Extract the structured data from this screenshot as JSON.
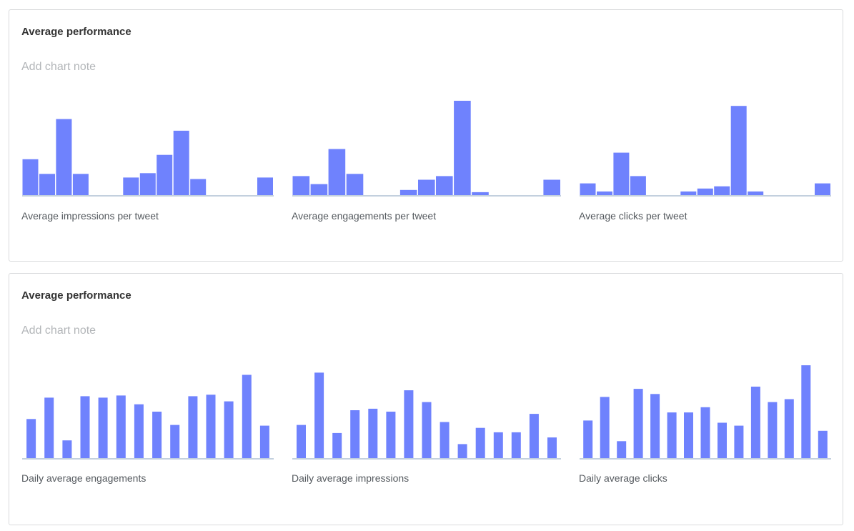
{
  "colors": {
    "bar": "#6f82fd",
    "baseline": "#c3d0de",
    "note": "#b3b6b9"
  },
  "cards": [
    {
      "title": "Average performance",
      "note_placeholder": "Add chart note"
    },
    {
      "title": "Average performance",
      "note_placeholder": "Add chart note"
    }
  ],
  "chart_data": [
    {
      "type": "bar",
      "title": "Average impressions per tweet",
      "bar_mode": "histogram",
      "values": [
        50,
        30,
        105,
        30,
        0,
        0,
        25,
        31,
        56,
        89,
        23,
        0,
        0,
        0,
        25
      ],
      "ylim": [
        0,
        130
      ]
    },
    {
      "type": "bar",
      "title": "Average engagements per tweet",
      "bar_mode": "histogram",
      "values": [
        27,
        16,
        64,
        30,
        0,
        0,
        8,
        22,
        27,
        130,
        5,
        0,
        0,
        0,
        22
      ],
      "ylim": [
        0,
        130
      ]
    },
    {
      "type": "bar",
      "title": "Average clicks per tweet",
      "bar_mode": "histogram",
      "values": [
        17,
        6,
        59,
        27,
        0,
        0,
        6,
        10,
        13,
        123,
        6,
        0,
        0,
        0,
        17
      ],
      "ylim": [
        0,
        130
      ]
    },
    {
      "type": "bar",
      "title": "Daily average engagements",
      "bar_mode": "column",
      "values": [
        54,
        83,
        25,
        85,
        83,
        86,
        74,
        64,
        46,
        85,
        87,
        78,
        114,
        45
      ],
      "ylim": [
        0,
        130
      ]
    },
    {
      "type": "bar",
      "title": "Daily average impressions",
      "bar_mode": "column",
      "values": [
        46,
        117,
        35,
        66,
        68,
        64,
        93,
        77,
        50,
        20,
        42,
        36,
        36,
        61,
        29
      ],
      "ylim": [
        0,
        130
      ]
    },
    {
      "type": "bar",
      "title": "Daily average clicks",
      "bar_mode": "column",
      "values": [
        52,
        84,
        24,
        95,
        88,
        63,
        63,
        70,
        49,
        45,
        98,
        77,
        81,
        127,
        38
      ],
      "ylim": [
        0,
        130
      ]
    }
  ]
}
